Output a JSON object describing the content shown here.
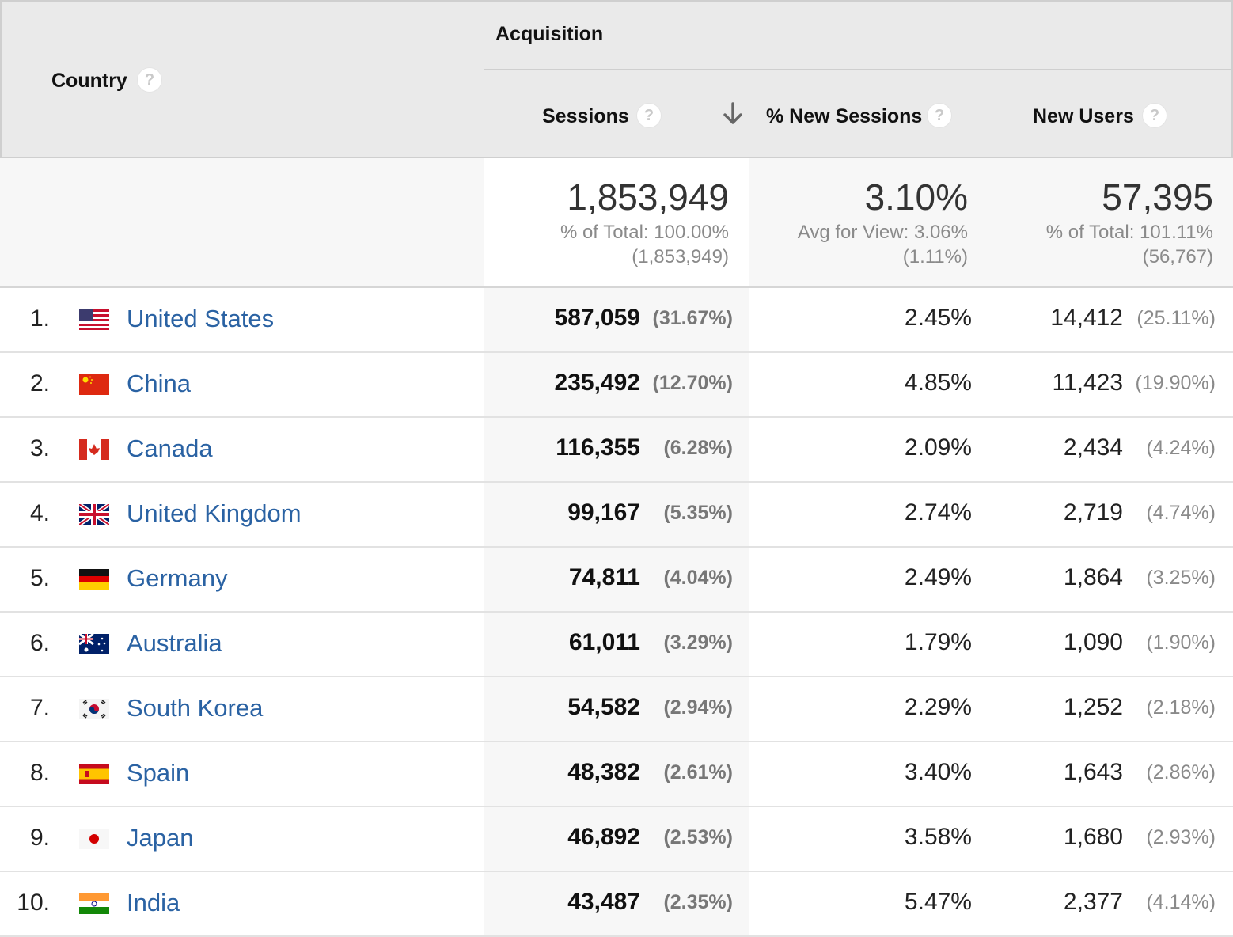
{
  "header": {
    "country_label": "Country",
    "group_label": "Acquisition",
    "columns": {
      "sessions": "Sessions",
      "new_sessions_pct": "% New Sessions",
      "new_users": "New Users"
    },
    "help_glyph": "?",
    "sort": {
      "column": "sessions",
      "direction": "descending",
      "icon": "arrow-down-icon"
    }
  },
  "totals": {
    "sessions": {
      "value": "1,853,949",
      "line1": "% of Total: 100.00%",
      "line2": "(1,853,949)"
    },
    "new_sessions_pct": {
      "value": "3.10%",
      "line1": "Avg for View: 3.06%",
      "line2": "(1.11%)"
    },
    "new_users": {
      "value": "57,395",
      "line1": "% of Total: 101.11%",
      "line2": "(56,767)"
    }
  },
  "rows": [
    {
      "rank": "1.",
      "flag": "us-flag-icon",
      "country": "United States",
      "sessions": "587,059",
      "sessions_pct": "(31.67%)",
      "new_sessions_pct": "2.45%",
      "new_users": "14,412",
      "new_users_pct": "(25.11%)"
    },
    {
      "rank": "2.",
      "flag": "cn-flag-icon",
      "country": "China",
      "sessions": "235,492",
      "sessions_pct": "(12.70%)",
      "new_sessions_pct": "4.85%",
      "new_users": "11,423",
      "new_users_pct": "(19.90%)"
    },
    {
      "rank": "3.",
      "flag": "ca-flag-icon",
      "country": "Canada",
      "sessions": "116,355",
      "sessions_pct": "(6.28%)",
      "new_sessions_pct": "2.09%",
      "new_users": "2,434",
      "new_users_pct": "(4.24%)"
    },
    {
      "rank": "4.",
      "flag": "gb-flag-icon",
      "country": "United Kingdom",
      "sessions": "99,167",
      "sessions_pct": "(5.35%)",
      "new_sessions_pct": "2.74%",
      "new_users": "2,719",
      "new_users_pct": "(4.74%)"
    },
    {
      "rank": "5.",
      "flag": "de-flag-icon",
      "country": "Germany",
      "sessions": "74,811",
      "sessions_pct": "(4.04%)",
      "new_sessions_pct": "2.49%",
      "new_users": "1,864",
      "new_users_pct": "(3.25%)"
    },
    {
      "rank": "6.",
      "flag": "au-flag-icon",
      "country": "Australia",
      "sessions": "61,011",
      "sessions_pct": "(3.29%)",
      "new_sessions_pct": "1.79%",
      "new_users": "1,090",
      "new_users_pct": "(1.90%)"
    },
    {
      "rank": "7.",
      "flag": "kr-flag-icon",
      "country": "South Korea",
      "sessions": "54,582",
      "sessions_pct": "(2.94%)",
      "new_sessions_pct": "2.29%",
      "new_users": "1,252",
      "new_users_pct": "(2.18%)"
    },
    {
      "rank": "8.",
      "flag": "es-flag-icon",
      "country": "Spain",
      "sessions": "48,382",
      "sessions_pct": "(2.61%)",
      "new_sessions_pct": "3.40%",
      "new_users": "1,643",
      "new_users_pct": "(2.86%)"
    },
    {
      "rank": "9.",
      "flag": "jp-flag-icon",
      "country": "Japan",
      "sessions": "46,892",
      "sessions_pct": "(2.53%)",
      "new_sessions_pct": "3.58%",
      "new_users": "1,680",
      "new_users_pct": "(2.93%)"
    },
    {
      "rank": "10.",
      "flag": "in-flag-icon",
      "country": "India",
      "sessions": "43,487",
      "sessions_pct": "(2.35%)",
      "new_sessions_pct": "5.47%",
      "new_users": "2,377",
      "new_users_pct": "(4.14%)"
    }
  ],
  "colors": {
    "link": "#2a62a3",
    "header_bg": "#eaeaea",
    "sorted_column_bg": "#f7f7f7",
    "muted_text": "#8a8a8a"
  }
}
